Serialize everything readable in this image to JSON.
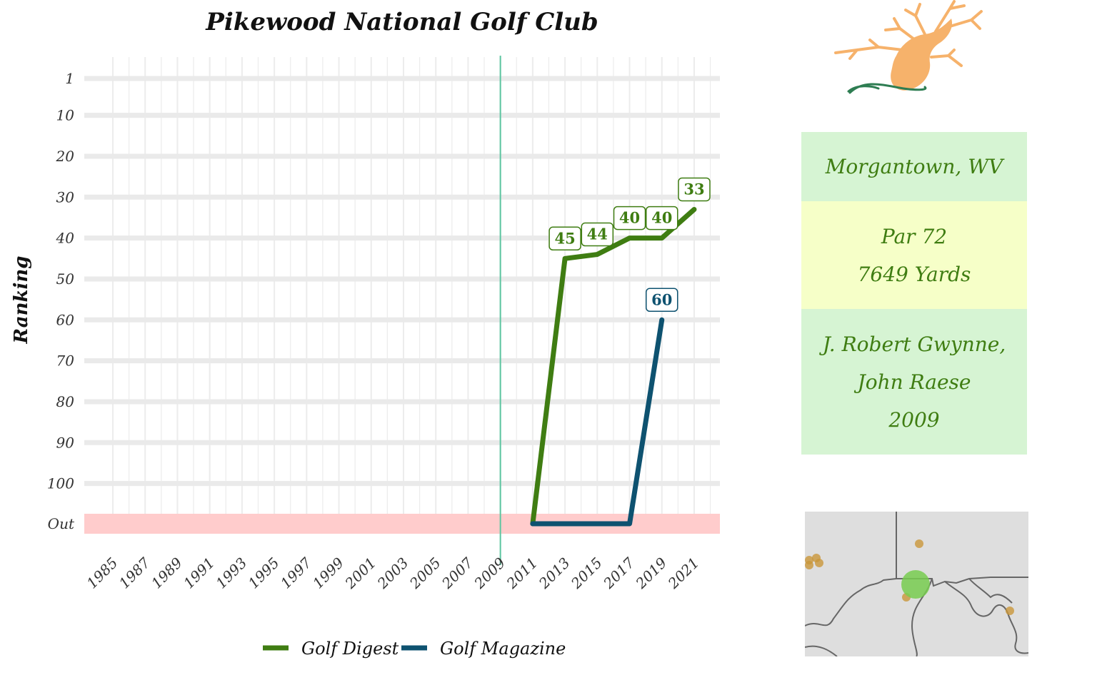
{
  "chart_data": {
    "type": "line",
    "title": "Pikewood National Golf Club",
    "xlabel": "",
    "ylabel": "Ranking",
    "x_ticks": [
      1985,
      1987,
      1989,
      1991,
      1993,
      1995,
      1997,
      1999,
      2001,
      2003,
      2005,
      2007,
      2009,
      2011,
      2013,
      2015,
      2017,
      2019,
      2021
    ],
    "y_tick_labels": [
      "1",
      "10",
      "20",
      "30",
      "40",
      "50",
      "60",
      "70",
      "80",
      "90",
      "100",
      "Out"
    ],
    "y_tick_values": [
      1,
      10,
      20,
      30,
      40,
      50,
      60,
      70,
      80,
      90,
      100,
      "Out"
    ],
    "reverse_y": true,
    "vline_year": 2009,
    "grid": true,
    "legend_position": "bottom",
    "series": [
      {
        "name": "Golf Digest",
        "color": "#3f7d12",
        "points": [
          {
            "x": 2011,
            "y": "Out"
          },
          {
            "x": 2013,
            "y": 45
          },
          {
            "x": 2015,
            "y": 44
          },
          {
            "x": 2017,
            "y": 40
          },
          {
            "x": 2019,
            "y": 40
          },
          {
            "x": 2021,
            "y": 33
          }
        ],
        "labels": [
          {
            "x": 2013,
            "y": 45,
            "text": "45"
          },
          {
            "x": 2015,
            "y": 44,
            "text": "44"
          },
          {
            "x": 2017,
            "y": 40,
            "text": "40"
          },
          {
            "x": 2019,
            "y": 40,
            "text": "40"
          },
          {
            "x": 2021,
            "y": 33,
            "text": "33"
          }
        ]
      },
      {
        "name": "Golf Magazine",
        "color": "#0e5270",
        "points": [
          {
            "x": 2011,
            "y": "Out"
          },
          {
            "x": 2017,
            "y": "Out"
          },
          {
            "x": 2019,
            "y": 60
          }
        ],
        "labels": [
          {
            "x": 2019,
            "y": 60,
            "text": "60"
          }
        ]
      }
    ]
  },
  "info": {
    "location": "Morgantown, WV",
    "par": "Par 72",
    "yards": "7649 Yards",
    "architect_1": "J. Robert Gwynne,",
    "architect_2": "John Raese",
    "year": "2009"
  },
  "colors": {
    "out_band": "#ffcccc",
    "vline": "#5cc5a0",
    "info_green": "#d6f4d3",
    "info_yellow": "#f6ffc8",
    "info_text": "#3f7d12",
    "map_background": "#dedede",
    "map_course_marker": "#78cc50",
    "map_other_markers": "#c9963a",
    "logo_tree": "#f6b26b",
    "logo_ground": "#2e7d52"
  },
  "icons": {
    "logo": "pikewood-tree-logo",
    "map": "region-locator-map"
  }
}
